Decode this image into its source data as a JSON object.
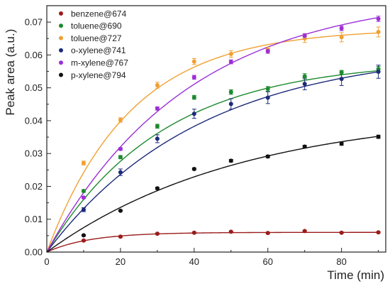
{
  "chart_data": {
    "type": "scatter",
    "xlabel": "Time (min)",
    "ylabel": "Peak area (a.u.)",
    "xlim": [
      0,
      92
    ],
    "ylim": [
      0,
      0.075
    ],
    "x_ticks": [
      0,
      20,
      40,
      60,
      80
    ],
    "x_tick_labels": [
      "0",
      "20",
      "40",
      "60",
      "80"
    ],
    "y_ticks": [
      0.0,
      0.01,
      0.02,
      0.03,
      0.04,
      0.05,
      0.06,
      0.07
    ],
    "y_tick_labels": [
      "0.00",
      "0.01",
      "0.02",
      "0.03",
      "0.04",
      "0.05",
      "0.06",
      "0.07"
    ],
    "grid": false,
    "legend_position": "top-left",
    "x": [
      10,
      20,
      30,
      40,
      50,
      60,
      70,
      80,
      90
    ],
    "series": [
      {
        "name": "benzene@674",
        "color": "#9b1c1c",
        "values": [
          0.0035,
          0.0047,
          0.0056,
          0.0059,
          0.0062,
          0.0058,
          0.0064,
          0.0059,
          0.006
        ],
        "errors": [
          0.0002,
          0.0002,
          0.0002,
          0.0002,
          0.0002,
          0.0002,
          0.0002,
          0.0002,
          0.0002
        ],
        "fit_ymax": 0.006,
        "fit_k": 0.085
      },
      {
        "name": "toluene@690",
        "color": "#1e8a2e",
        "values": [
          0.0186,
          0.0289,
          0.0383,
          0.0471,
          0.0487,
          0.0497,
          0.0535,
          0.0547,
          0.0557
        ],
        "errors": [
          0.0004,
          0.0005,
          0.0006,
          0.0006,
          0.0007,
          0.0007,
          0.0008,
          0.0006,
          0.0008
        ],
        "fit_ymax": 0.0585,
        "fit_k": 0.032
      },
      {
        "name": "toluene@727",
        "color": "#f0a033",
        "values": [
          0.0271,
          0.0402,
          0.0508,
          0.058,
          0.0603,
          0.0616,
          0.065,
          0.0654,
          0.067
        ],
        "errors": [
          0.0006,
          0.0007,
          0.0009,
          0.0009,
          0.001,
          0.0008,
          0.0012,
          0.0014,
          0.0015
        ],
        "fit_ymax": 0.068,
        "fit_k": 0.044
      },
      {
        "name": "o-xylene@741",
        "color": "#1c2a7a",
        "values": [
          0.0129,
          0.0243,
          0.0345,
          0.0421,
          0.0451,
          0.047,
          0.0512,
          0.0527,
          0.0549
        ],
        "errors": [
          0.0006,
          0.001,
          0.0012,
          0.0014,
          0.0016,
          0.0018,
          0.0018,
          0.002,
          0.002
        ],
        "fit_ymax": 0.062,
        "fit_k": 0.024
      },
      {
        "name": "m-xylene@767",
        "color": "#9b2fd6",
        "values": [
          0.0166,
          0.0314,
          0.0437,
          0.0532,
          0.0579,
          0.0612,
          0.0658,
          0.0681,
          0.071
        ],
        "errors": [
          0.0003,
          0.0004,
          0.0005,
          0.0006,
          0.0006,
          0.0007,
          0.0007,
          0.0007,
          0.0008
        ],
        "fit_ymax": 0.079,
        "fit_k": 0.026
      },
      {
        "name": "p-xylene@794",
        "color": "#111111",
        "values": [
          0.0051,
          0.0126,
          0.0194,
          0.0253,
          0.0278,
          0.0291,
          0.0321,
          0.033,
          0.0351
        ],
        "errors": [
          0.0002,
          0.0002,
          0.0003,
          0.0003,
          0.0004,
          0.0004,
          0.0004,
          0.0005,
          0.0005
        ],
        "fit_ymax": 0.043,
        "fit_k": 0.019
      }
    ]
  }
}
